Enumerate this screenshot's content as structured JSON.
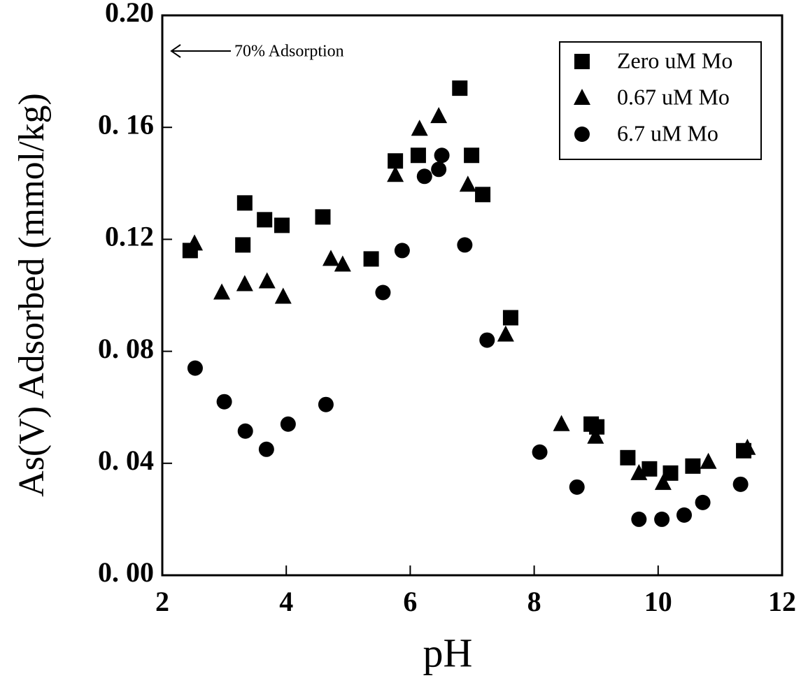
{
  "chart_data": {
    "type": "scatter",
    "xlabel": "pH",
    "ylabel": "As(V) Adsorbed (mmol/kg)",
    "annotation": "70% Adsorption",
    "xlim": [
      2,
      12
    ],
    "xticks": [
      2,
      4,
      6,
      8,
      10,
      12
    ],
    "ylim": [
      0,
      0.2
    ],
    "yticks": [
      {
        "value": 0,
        "label": "0. 00"
      },
      {
        "value": 0.04,
        "label": "0. 04"
      },
      {
        "value": 0.08,
        "label": "0. 08"
      },
      {
        "value": 0.12,
        "label": "0.12"
      },
      {
        "value": 0.16,
        "label": "0. 16"
      },
      {
        "value": 0.2,
        "label": "0.20"
      }
    ],
    "series": [
      {
        "name": "Zero uM Mo",
        "color": "#000000",
        "marker": "square",
        "x": [
          2.45,
          3.3,
          3.33,
          3.65,
          3.93,
          4.59,
          5.37,
          5.76,
          6.13,
          6.8,
          6.99,
          7.17,
          7.62,
          8.92,
          9.01,
          9.51,
          9.86,
          10.2,
          10.56,
          11.38
        ],
        "values": [
          0.116,
          0.118,
          0.133,
          0.127,
          0.125,
          0.128,
          0.113,
          0.148,
          0.15,
          0.174,
          0.15,
          0.136,
          0.092,
          0.054,
          0.053,
          0.042,
          0.038,
          0.0365,
          0.039,
          0.0445
        ]
      },
      {
        "name": "0.67 uM Mo",
        "color": "#000000",
        "marker": "triangle",
        "x": [
          2.52,
          2.96,
          3.33,
          3.69,
          3.95,
          4.72,
          4.91,
          5.76,
          6.15,
          6.46,
          6.93,
          7.54,
          8.44,
          8.99,
          9.69,
          10.08,
          10.81,
          11.44
        ],
        "values": [
          0.1185,
          0.101,
          0.104,
          0.105,
          0.0995,
          0.113,
          0.111,
          0.143,
          0.1595,
          0.164,
          0.1395,
          0.086,
          0.054,
          0.0495,
          0.0365,
          0.033,
          0.0405,
          0.0455
        ]
      },
      {
        "name": "6.7 uM Mo",
        "color": "#000000",
        "marker": "circle",
        "x": [
          2.53,
          3.0,
          3.34,
          3.68,
          4.03,
          4.64,
          5.56,
          5.87,
          6.23,
          6.46,
          6.51,
          6.88,
          7.24,
          8.09,
          8.69,
          9.69,
          10.06,
          10.42,
          10.72,
          11.33
        ],
        "values": [
          0.074,
          0.062,
          0.0515,
          0.045,
          0.054,
          0.061,
          0.101,
          0.116,
          0.1425,
          0.145,
          0.15,
          0.118,
          0.084,
          0.044,
          0.0315,
          0.02,
          0.02,
          0.0215,
          0.026,
          0.0325
        ]
      }
    ]
  }
}
